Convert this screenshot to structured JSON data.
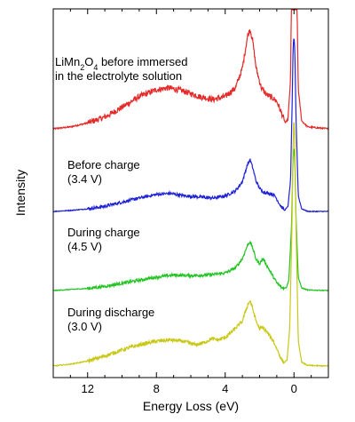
{
  "chart_data": {
    "type": "line",
    "xlabel": "Energy Loss (eV)",
    "ylabel": "Intensity",
    "xlim": [
      14,
      -2
    ],
    "x_reversed": true,
    "yticks_shown": false,
    "xticks": [
      12,
      8,
      4,
      0
    ],
    "xtick_labels": [
      "12",
      "8",
      "4",
      "0"
    ],
    "grid": false,
    "legend": "none",
    "series": [
      {
        "label_lines": [
          {
            "pre": "LiMn",
            "sub1": "2",
            "mid": "O",
            "sub2": "4",
            "post": " before immersed"
          },
          {
            "pre": "in the electrolyte solution",
            "sub1": "",
            "mid": "",
            "sub2": "",
            "post": ""
          }
        ],
        "color": "#e52a2a",
        "baseline": 0.0,
        "points": [
          [
            14,
            0.0
          ],
          [
            13,
            0.02
          ],
          [
            12,
            0.06
          ],
          [
            11,
            0.12
          ],
          [
            10,
            0.22
          ],
          [
            9,
            0.33
          ],
          [
            8,
            0.4
          ],
          [
            7.3,
            0.42
          ],
          [
            6.5,
            0.39
          ],
          [
            5.5,
            0.33
          ],
          [
            4.7,
            0.3
          ],
          [
            4,
            0.33
          ],
          [
            3.4,
            0.42
          ],
          [
            3.0,
            0.62
          ],
          [
            2.7,
            0.95
          ],
          [
            2.55,
            1.02
          ],
          [
            2.4,
            0.9
          ],
          [
            2.2,
            0.62
          ],
          [
            1.9,
            0.42
          ],
          [
            1.6,
            0.35
          ],
          [
            1.4,
            0.33
          ],
          [
            1.2,
            0.31
          ],
          [
            1.0,
            0.28
          ],
          [
            0.7,
            0.15
          ],
          [
            0.5,
            0.06
          ],
          [
            0.35,
            0.1
          ],
          [
            0.2,
            0.5
          ],
          [
            0.1,
            2.2
          ],
          [
            0.05,
            3.3
          ],
          [
            0,
            3.6
          ],
          [
            -0.05,
            3.3
          ],
          [
            -0.12,
            2.0
          ],
          [
            -0.25,
            0.4
          ],
          [
            -0.45,
            0.08
          ],
          [
            -0.8,
            0.02
          ],
          [
            -2,
            0.0
          ]
        ]
      },
      {
        "label_lines": [
          {
            "pre": "Before charge",
            "sub1": "",
            "mid": "",
            "sub2": "",
            "post": ""
          },
          {
            "pre": "(3.4 V)",
            "sub1": "",
            "mid": "",
            "sub2": "",
            "post": ""
          }
        ],
        "color": "#1f22d4",
        "baseline": 0.0,
        "points": [
          [
            14,
            0.0
          ],
          [
            13,
            0.02
          ],
          [
            12,
            0.05
          ],
          [
            11,
            0.1
          ],
          [
            10,
            0.18
          ],
          [
            9,
            0.26
          ],
          [
            8,
            0.33
          ],
          [
            7.2,
            0.35
          ],
          [
            6.5,
            0.31
          ],
          [
            5.5,
            0.28
          ],
          [
            4.7,
            0.26
          ],
          [
            4,
            0.3
          ],
          [
            3.4,
            0.4
          ],
          [
            3.0,
            0.58
          ],
          [
            2.7,
            0.92
          ],
          [
            2.55,
            1.0
          ],
          [
            2.4,
            0.85
          ],
          [
            2.2,
            0.58
          ],
          [
            1.9,
            0.4
          ],
          [
            1.6,
            0.36
          ],
          [
            1.3,
            0.34
          ],
          [
            1.1,
            0.3
          ],
          [
            0.8,
            0.12
          ],
          [
            0.55,
            0.02
          ],
          [
            0.35,
            0.1
          ],
          [
            0.2,
            0.6
          ],
          [
            0.1,
            2.2
          ],
          [
            0.05,
            3.2
          ],
          [
            0,
            3.4
          ],
          [
            -0.05,
            3.1
          ],
          [
            -0.12,
            1.8
          ],
          [
            -0.25,
            0.3
          ],
          [
            -0.45,
            0.05
          ],
          [
            -0.8,
            0.0
          ],
          [
            -2,
            0.0
          ]
        ]
      },
      {
        "label_lines": [
          {
            "pre": "During charge",
            "sub1": "",
            "mid": "",
            "sub2": "",
            "post": ""
          },
          {
            "pre": "(4.5 V)",
            "sub1": "",
            "mid": "",
            "sub2": "",
            "post": ""
          }
        ],
        "color": "#22c422",
        "baseline": 0.0,
        "points": [
          [
            14,
            0.0
          ],
          [
            13,
            0.02
          ],
          [
            12,
            0.04
          ],
          [
            11,
            0.08
          ],
          [
            10,
            0.14
          ],
          [
            9,
            0.2
          ],
          [
            8,
            0.26
          ],
          [
            7,
            0.3
          ],
          [
            6,
            0.29
          ],
          [
            5,
            0.3
          ],
          [
            4,
            0.34
          ],
          [
            3.4,
            0.44
          ],
          [
            3.0,
            0.62
          ],
          [
            2.7,
            0.88
          ],
          [
            2.55,
            0.95
          ],
          [
            2.4,
            0.82
          ],
          [
            2.2,
            0.6
          ],
          [
            2.0,
            0.52
          ],
          [
            1.8,
            0.62
          ],
          [
            1.6,
            0.5
          ],
          [
            1.3,
            0.32
          ],
          [
            1.0,
            0.15
          ],
          [
            0.7,
            0.05
          ],
          [
            0.45,
            0.05
          ],
          [
            0.3,
            0.2
          ],
          [
            0.15,
            1.2
          ],
          [
            0.05,
            2.6
          ],
          [
            0,
            2.8
          ],
          [
            -0.05,
            2.5
          ],
          [
            -0.12,
            1.4
          ],
          [
            -0.25,
            0.25
          ],
          [
            -0.45,
            0.05
          ],
          [
            -0.8,
            0.01
          ],
          [
            -2,
            0.0
          ]
        ]
      },
      {
        "label_lines": [
          {
            "pre": "During discharge",
            "sub1": "",
            "mid": "",
            "sub2": "",
            "post": ""
          },
          {
            "pre": "(3.0 V)",
            "sub1": "",
            "mid": "",
            "sub2": "",
            "post": ""
          }
        ],
        "color": "#c9c818",
        "baseline": 0.0,
        "points": [
          [
            14,
            0.0
          ],
          [
            13,
            0.03
          ],
          [
            12,
            0.08
          ],
          [
            11,
            0.16
          ],
          [
            10,
            0.26
          ],
          [
            9,
            0.34
          ],
          [
            8,
            0.4
          ],
          [
            7.2,
            0.42
          ],
          [
            6.5,
            0.4
          ],
          [
            5.7,
            0.34
          ],
          [
            5.2,
            0.38
          ],
          [
            4.8,
            0.44
          ],
          [
            4.4,
            0.42
          ],
          [
            4,
            0.46
          ],
          [
            3.5,
            0.58
          ],
          [
            3.0,
            0.72
          ],
          [
            2.7,
            0.98
          ],
          [
            2.55,
            1.05
          ],
          [
            2.4,
            0.92
          ],
          [
            2.2,
            0.72
          ],
          [
            2.0,
            0.6
          ],
          [
            1.8,
            0.62
          ],
          [
            1.5,
            0.52
          ],
          [
            1.2,
            0.4
          ],
          [
            1.0,
            0.28
          ],
          [
            0.8,
            0.15
          ],
          [
            0.6,
            0.05
          ],
          [
            0.4,
            0.1
          ],
          [
            0.25,
            0.6
          ],
          [
            0.12,
            2.2
          ],
          [
            0.05,
            3.6
          ],
          [
            0,
            4.0
          ],
          [
            -0.05,
            3.6
          ],
          [
            -0.12,
            2.2
          ],
          [
            -0.25,
            0.4
          ],
          [
            -0.45,
            0.06
          ],
          [
            -0.8,
            0.01
          ],
          [
            -2,
            0.0
          ]
        ]
      }
    ]
  }
}
